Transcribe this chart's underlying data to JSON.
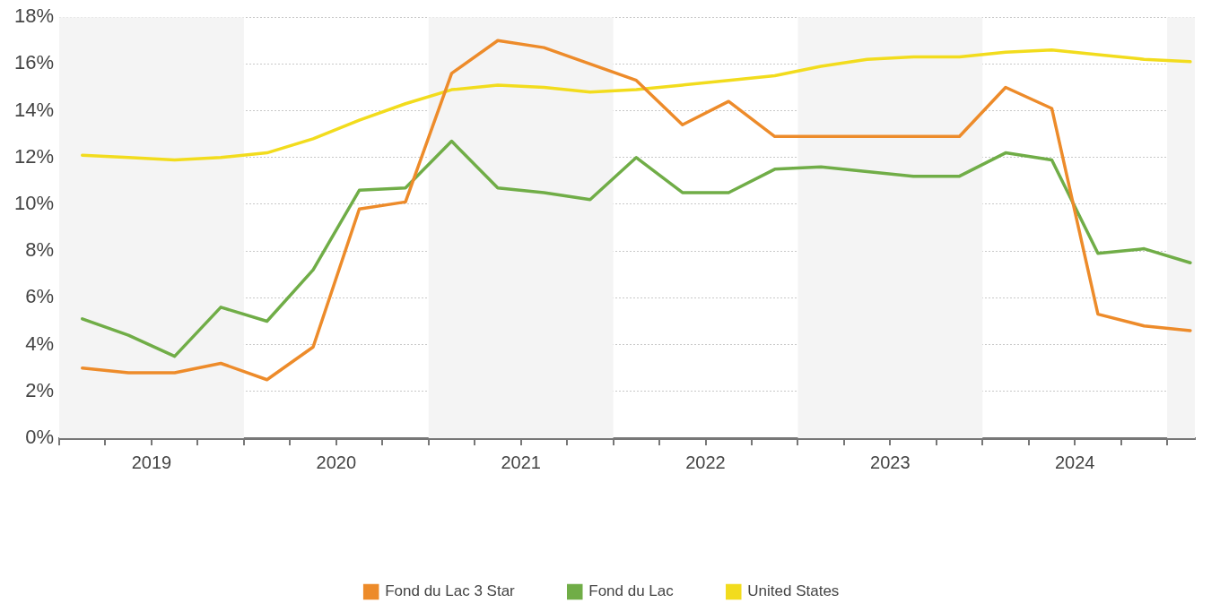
{
  "chart_data": {
    "type": "line",
    "x": [
      2019.125,
      2019.375,
      2019.625,
      2019.875,
      2020.125,
      2020.375,
      2020.625,
      2020.875,
      2021.125,
      2021.375,
      2021.625,
      2021.875,
      2022.125,
      2022.375,
      2022.625,
      2022.875,
      2023.125,
      2023.375,
      2023.625,
      2023.875,
      2024.125,
      2024.375,
      2024.625,
      2024.875,
      2025.125
    ],
    "series": [
      {
        "name": "Fond du Lac 3 Star",
        "color": "#ed8b2a",
        "values": [
          3.0,
          2.8,
          2.8,
          3.2,
          2.5,
          3.9,
          9.8,
          10.1,
          15.6,
          17.0,
          16.7,
          16.0,
          15.3,
          13.4,
          14.4,
          12.9,
          12.9,
          12.9,
          12.9,
          12.9,
          15.0,
          14.1,
          5.3,
          4.8,
          4.6
        ]
      },
      {
        "name": "Fond du Lac",
        "color": "#70ad47",
        "values": [
          5.1,
          4.4,
          3.5,
          5.6,
          5.0,
          7.2,
          10.6,
          10.7,
          12.7,
          10.7,
          10.5,
          10.2,
          12.0,
          10.5,
          10.5,
          11.5,
          11.6,
          11.4,
          11.2,
          11.2,
          12.2,
          11.9,
          7.9,
          8.1,
          7.5
        ]
      },
      {
        "name": "United States",
        "color": "#f2dc1d",
        "values": [
          12.1,
          12.0,
          11.9,
          12.0,
          12.2,
          12.8,
          13.6,
          14.3,
          14.9,
          15.1,
          15.0,
          14.8,
          14.9,
          15.1,
          15.3,
          15.5,
          15.9,
          16.2,
          16.3,
          16.3,
          16.5,
          16.6,
          16.4,
          16.2,
          16.1
        ]
      }
    ],
    "xlim": [
      2019,
      2025.15
    ],
    "xticks": [
      {
        "value": 2019,
        "label": null
      },
      {
        "value": 2019.25,
        "label": null
      },
      {
        "value": 2019.5,
        "label": "2019"
      },
      {
        "value": 2019.75,
        "label": null
      },
      {
        "value": 2020,
        "label": null
      },
      {
        "value": 2020.25,
        "label": null
      },
      {
        "value": 2020.5,
        "label": "2020"
      },
      {
        "value": 2020.75,
        "label": null
      },
      {
        "value": 2021,
        "label": null
      },
      {
        "value": 2021.25,
        "label": null
      },
      {
        "value": 2021.5,
        "label": "2021"
      },
      {
        "value": 2021.75,
        "label": null
      },
      {
        "value": 2022,
        "label": null
      },
      {
        "value": 2022.25,
        "label": null
      },
      {
        "value": 2022.5,
        "label": "2022"
      },
      {
        "value": 2022.75,
        "label": null
      },
      {
        "value": 2023,
        "label": null
      },
      {
        "value": 2023.25,
        "label": null
      },
      {
        "value": 2023.5,
        "label": "2023"
      },
      {
        "value": 2023.75,
        "label": null
      },
      {
        "value": 2024,
        "label": null
      },
      {
        "value": 2024.25,
        "label": null
      },
      {
        "value": 2024.5,
        "label": "2024"
      },
      {
        "value": 2024.75,
        "label": null
      },
      {
        "value": 2025,
        "label": null
      }
    ],
    "ylim": [
      0,
      18
    ],
    "yticks": [
      {
        "value": 0,
        "label": "0%"
      },
      {
        "value": 2,
        "label": "2%"
      },
      {
        "value": 4,
        "label": "4%"
      },
      {
        "value": 6,
        "label": "6%"
      },
      {
        "value": 8,
        "label": "8%"
      },
      {
        "value": 10,
        "label": "10%"
      },
      {
        "value": 12,
        "label": "12%"
      },
      {
        "value": 14,
        "label": "14%"
      },
      {
        "value": 16,
        "label": "16%"
      },
      {
        "value": 18,
        "label": "18%"
      }
    ],
    "bands": [
      {
        "axis": "x",
        "from": 2019,
        "to": 2020,
        "color": "#f4f4f4"
      },
      {
        "axis": "x",
        "from": 2021,
        "to": 2022,
        "color": "#f4f4f4"
      },
      {
        "axis": "x",
        "from": 2023,
        "to": 2024,
        "color": "#f4f4f4"
      },
      {
        "axis": "x",
        "from": 2025,
        "to": 2025.15,
        "color": "#f4f4f4"
      }
    ],
    "grid": "y",
    "legend": "bottom",
    "marker": "none",
    "line_style": "solid"
  }
}
